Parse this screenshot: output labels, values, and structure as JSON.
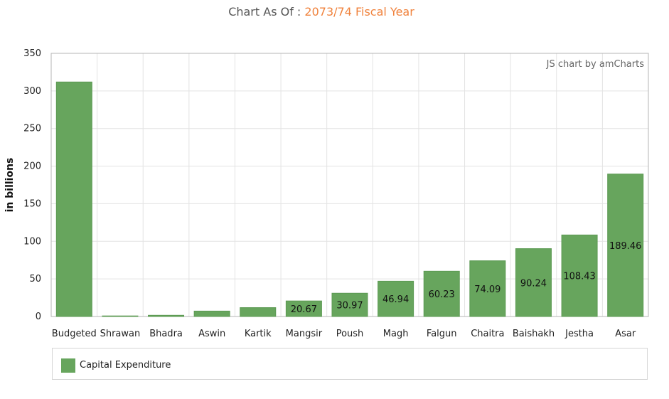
{
  "header": {
    "title_prefix": "Chart As Of : ",
    "title_highlight": "2073/74 Fiscal Year"
  },
  "chart_data": {
    "type": "bar",
    "title": "Chart As Of : 2073/74 Fiscal Year",
    "ylabel": "in billions",
    "xlabel": "",
    "ylim": [
      0,
      350
    ],
    "yticks": [
      0,
      50,
      100,
      150,
      200,
      250,
      300,
      350
    ],
    "categories": [
      "Budgeted",
      "Shrawan",
      "Bhadra",
      "Aswin",
      "Kartik",
      "Mangsir",
      "Poush",
      "Magh",
      "Falgun",
      "Chaitra",
      "Baishakh",
      "Jestha",
      "Asar"
    ],
    "series": [
      {
        "name": "Capital Expenditure",
        "values": [
          311.9,
          0.5,
          1.6,
          7.2,
          11.8,
          20.67,
          30.97,
          46.94,
          60.23,
          74.09,
          90.24,
          108.43,
          189.46
        ],
        "labels": [
          "",
          "",
          "",
          "",
          "",
          "20.67",
          "30.97",
          "46.94",
          "60.23",
          "74.09",
          "90.24",
          "108.43",
          "189.46"
        ],
        "color": "#67a55d"
      }
    ],
    "grid": true,
    "legend": "bottom"
  },
  "credit": "JS chart by amCharts",
  "colors": {
    "bar": "#67a55d",
    "bar_stroke": "#5c9a53",
    "highlight": "#f0823c",
    "grid": "#e3e3e3",
    "axis": "#b5b5b5"
  }
}
